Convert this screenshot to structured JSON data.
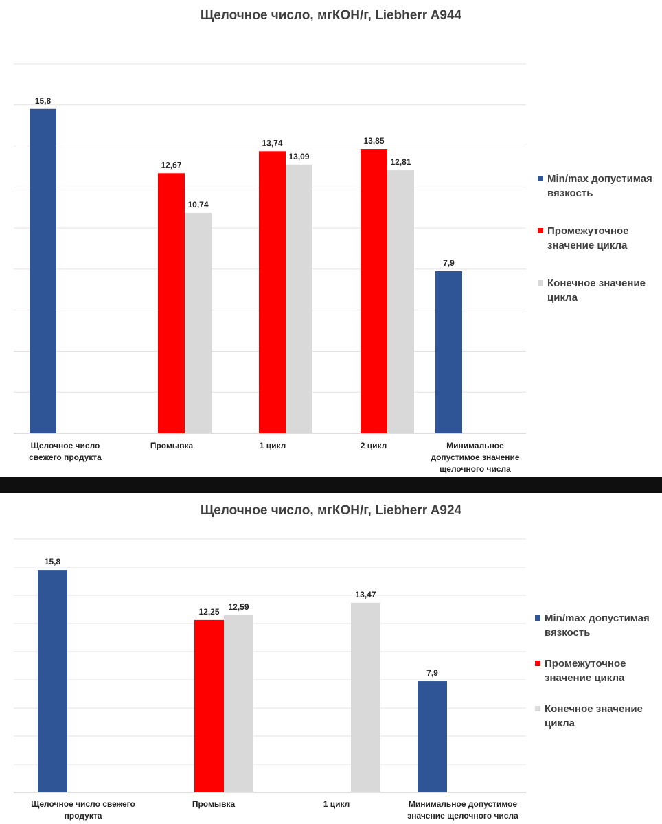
{
  "chart_data": [
    {
      "type": "bar",
      "title": "Щелочное число, мгКОН/г, Liebherr A944",
      "categories": [
        "Щелочное число свежего продукта",
        "Промывка",
        "1 цикл",
        "2 цикл",
        "Минимальное допустимое значение щелочного числа"
      ],
      "series": [
        {
          "name": "Min/max допустимая вязкость",
          "color": "#2F5597",
          "values": [
            15.8,
            null,
            null,
            null,
            7.9
          ],
          "labels": [
            "15,8",
            null,
            null,
            null,
            "7,9"
          ]
        },
        {
          "name": "Промежуточное значение цикла",
          "color": "#FF0000",
          "values": [
            null,
            12.67,
            13.74,
            13.85,
            null
          ],
          "labels": [
            null,
            "12,67",
            "13,74",
            "13,85",
            null
          ]
        },
        {
          "name": "Конечное значение цикла",
          "color": "#D9D9D9",
          "values": [
            null,
            10.74,
            13.09,
            12.81,
            null
          ],
          "labels": [
            null,
            "10,74",
            "13,09",
            "12,81",
            null
          ]
        }
      ],
      "ylim": [
        0,
        18
      ],
      "grid": true,
      "legend": "right"
    },
    {
      "type": "bar",
      "title": "Щелочное число, мгКОН/г, Liebherr A924",
      "categories": [
        "Щелочное число свежего продукта",
        "Промывка",
        "1 цикл",
        "Минимальное допустимое значение щелочного числа"
      ],
      "series": [
        {
          "name": "Min/max допустимая вязкость",
          "color": "#2F5597",
          "values": [
            15.8,
            null,
            null,
            7.9
          ],
          "labels": [
            "15,8",
            null,
            null,
            "7,9"
          ]
        },
        {
          "name": "Промежуточное значение цикла",
          "color": "#FF0000",
          "values": [
            null,
            12.25,
            null,
            null
          ],
          "labels": [
            null,
            "12,25",
            null,
            null
          ]
        },
        {
          "name": "Конечное значение цикла",
          "color": "#D9D9D9",
          "values": [
            null,
            12.59,
            13.47,
            null
          ],
          "labels": [
            null,
            "12,59",
            "13,47",
            null
          ]
        }
      ],
      "ylim": [
        0,
        18
      ],
      "grid": true,
      "legend": "right"
    }
  ]
}
